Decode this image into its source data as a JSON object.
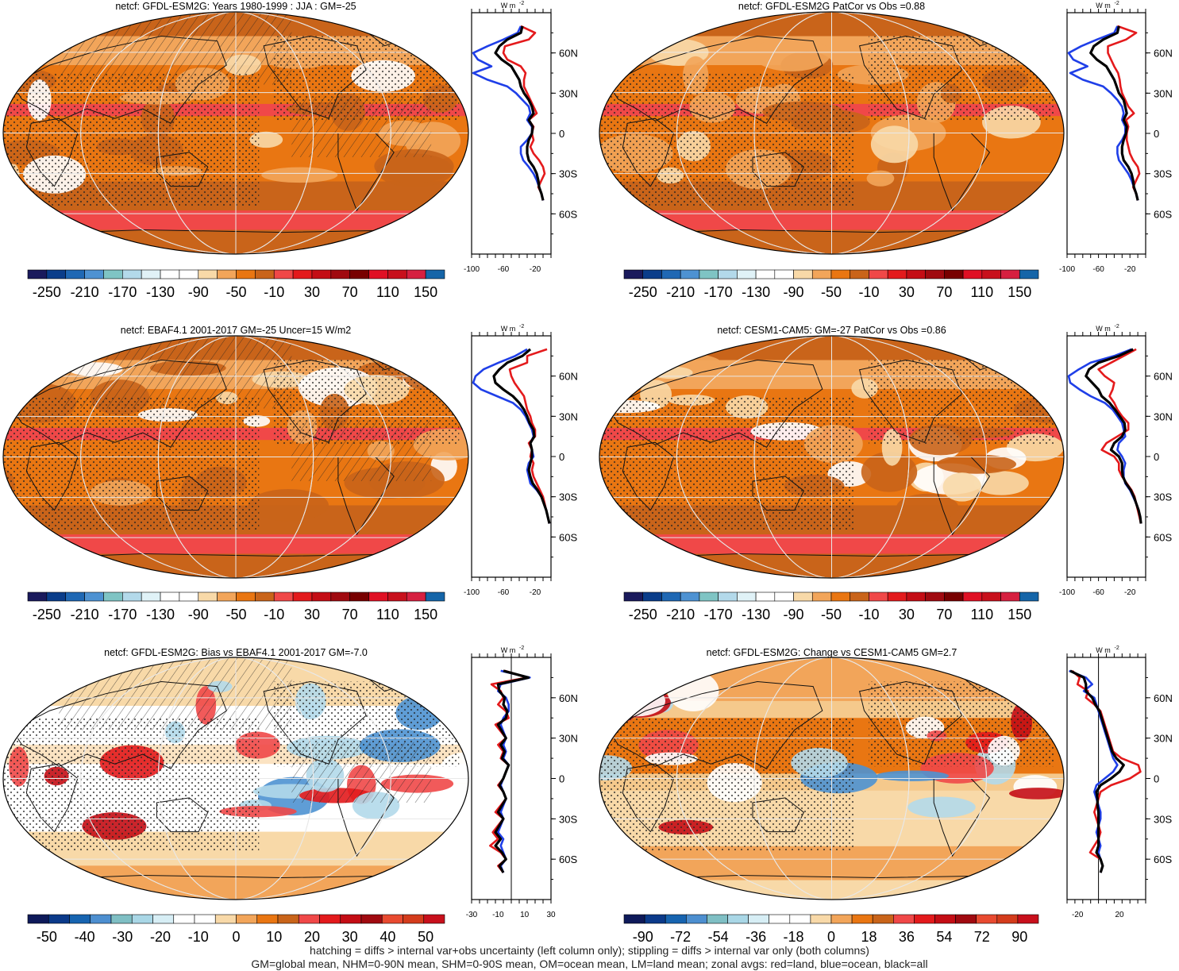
{
  "chart_data": [
    {
      "type": "heatmap",
      "title": "netcf: GFDL-ESM2G: Years 1980-1999 : JJA : GM=-25",
      "colorbar_labels": [
        "-250",
        "-210",
        "-170",
        "-130",
        "-90",
        "-50",
        "-10",
        "30",
        "70",
        "110",
        "150"
      ],
      "zonal_profile": {
        "type": "line",
        "unit": "W m",
        "unit_exponent": "-2",
        "xticks": [
          "-100",
          "-60",
          "-20"
        ],
        "yticks": [
          "60N",
          "30N",
          "0",
          "30S",
          "60S"
        ],
        "xlim": [
          -100,
          0
        ],
        "ylim": [
          -90,
          90
        ],
        "lat": [
          80,
          75,
          70,
          65,
          60,
          55,
          50,
          45,
          40,
          35,
          30,
          25,
          20,
          15,
          10,
          5,
          0,
          -5,
          -10,
          -15,
          -20,
          -25,
          -30,
          -35,
          -40,
          -45,
          -50
        ],
        "series": [
          {
            "color": "#e41a1c",
            "values": [
              -38,
              -20,
              -28,
              -58,
              -60,
              -55,
              -38,
              -32,
              -34,
              -34,
              -30,
              -26,
              -22,
              -18,
              -28,
              -22,
              -24,
              -22,
              -26,
              -22,
              -15,
              -10,
              -8,
              -12,
              -16,
              -12,
              -10
            ]
          },
          {
            "color": "#1f3fe8",
            "values": [
              -38,
              -42,
              -60,
              -80,
              -98,
              -92,
              -75,
              -98,
              -80,
              -55,
              -44,
              -36,
              -28,
              -26,
              -30,
              -24,
              -24,
              -30,
              -38,
              -38,
              -35,
              -28,
              -22,
              -18,
              -15,
              -12,
              -10
            ]
          },
          {
            "color": "#000000",
            "values": [
              -36,
              -38,
              -55,
              -65,
              -70,
              -62,
              -50,
              -45,
              -40,
              -38,
              -34,
              -28,
              -24,
              -22,
              -28,
              -23,
              -24,
              -28,
              -30,
              -30,
              -28,
              -22,
              -18,
              -16,
              -15,
              -12,
              -10
            ]
          }
        ]
      }
    },
    {
      "type": "heatmap",
      "title": "netcf: GFDL-ESM2G PatCor vs Obs =0.88",
      "colorbar_labels": [
        "-250",
        "-210",
        "-170",
        "-130",
        "-90",
        "-50",
        "-10",
        "30",
        "70",
        "110",
        "150"
      ],
      "zonal_profile": {
        "type": "line",
        "unit": "W m",
        "unit_exponent": "-2",
        "xticks": [
          "-100",
          "-60",
          "-20"
        ],
        "yticks": [
          "60N",
          "30N",
          "0",
          "30S",
          "60S"
        ],
        "xlim": [
          -100,
          0
        ],
        "ylim": [
          -90,
          90
        ],
        "lat": [
          80,
          75,
          70,
          65,
          60,
          55,
          50,
          45,
          40,
          35,
          30,
          25,
          20,
          15,
          10,
          5,
          0,
          -5,
          -10,
          -15,
          -20,
          -25,
          -30,
          -35,
          -40,
          -45,
          -50
        ],
        "series": [
          {
            "color": "#e41a1c",
            "values": [
              -36,
              -12,
              -25,
              -48,
              -48,
              -44,
              -40,
              -35,
              -33,
              -32,
              -30,
              -26,
              -22,
              -15,
              -25,
              -22,
              -24,
              -24,
              -22,
              -20,
              -16,
              -10,
              -8,
              -12,
              -16,
              -12,
              -10
            ]
          },
          {
            "color": "#1f3fe8",
            "values": [
              -36,
              -40,
              -62,
              -82,
              -98,
              -92,
              -74,
              -96,
              -80,
              -54,
              -44,
              -36,
              -30,
              -28,
              -30,
              -26,
              -26,
              -30,
              -36,
              -36,
              -34,
              -28,
              -22,
              -18,
              -15,
              -12,
              -10
            ]
          },
          {
            "color": "#000000",
            "values": [
              -34,
              -36,
              -54,
              -66,
              -70,
              -62,
              -50,
              -45,
              -40,
              -37,
              -34,
              -28,
              -26,
              -24,
              -28,
              -24,
              -25,
              -28,
              -30,
              -30,
              -28,
              -22,
              -18,
              -16,
              -15,
              -12,
              -10
            ]
          }
        ]
      }
    },
    {
      "type": "heatmap",
      "title": "netcf: EBAF4.1 2001-2017 GM=-25 Uncer=15 W/m2",
      "colorbar_labels": [
        "-250",
        "-210",
        "-170",
        "-130",
        "-90",
        "-50",
        "-10",
        "30",
        "70",
        "110",
        "150"
      ],
      "zonal_profile": {
        "type": "line",
        "unit": "W m",
        "unit_exponent": "-2",
        "xticks": [
          "-100",
          "-60",
          "-20"
        ],
        "yticks": [
          "60N",
          "30N",
          "0",
          "30S",
          "60S"
        ],
        "xlim": [
          -100,
          0
        ],
        "ylim": [
          -90,
          90
        ],
        "lat": [
          80,
          75,
          70,
          65,
          60,
          55,
          50,
          45,
          40,
          35,
          30,
          25,
          20,
          15,
          10,
          5,
          0,
          -5,
          -10,
          -15,
          -20,
          -25,
          -30,
          -35,
          -40,
          -45,
          -50
        ],
        "series": [
          {
            "color": "#e41a1c",
            "values": [
              -5,
              -30,
              -30,
              -52,
              -50,
              -46,
              -40,
              -34,
              -32,
              -30,
              -26,
              -24,
              -20,
              -20,
              -28,
              -24,
              -26,
              -22,
              -24,
              -22,
              -18,
              -14,
              -10,
              -8,
              -6,
              -4,
              -2
            ]
          },
          {
            "color": "#1f3fe8",
            "values": [
              -30,
              -45,
              -66,
              -85,
              -95,
              -98,
              -88,
              -68,
              -48,
              -38,
              -32,
              -28,
              -24,
              -22,
              -26,
              -24,
              -22,
              -28,
              -30,
              -28,
              -26,
              -18,
              -12,
              -9,
              -6,
              -4,
              -2
            ]
          },
          {
            "color": "#000000",
            "values": [
              -26,
              -36,
              -55,
              -65,
              -72,
              -70,
              -60,
              -48,
              -40,
              -34,
              -30,
              -27,
              -22,
              -21,
              -26,
              -24,
              -24,
              -26,
              -28,
              -26,
              -23,
              -17,
              -12,
              -9,
              -6,
              -4,
              -2
            ]
          }
        ]
      }
    },
    {
      "type": "heatmap",
      "title": "netcf: CESM1-CAM5: GM=-27 PatCor vs Obs =0.86",
      "colorbar_labels": [
        "-250",
        "-210",
        "-170",
        "-130",
        "-90",
        "-50",
        "-10",
        "30",
        "70",
        "110",
        "150"
      ],
      "zonal_profile": {
        "type": "line",
        "unit": "W m",
        "unit_exponent": "-2",
        "xticks": [
          "-100",
          "-60",
          "-20"
        ],
        "yticks": [
          "60N",
          "30N",
          "0",
          "30S",
          "60S"
        ],
        "xlim": [
          -100,
          0
        ],
        "ylim": [
          -90,
          90
        ],
        "lat": [
          80,
          75,
          70,
          65,
          60,
          55,
          50,
          45,
          40,
          35,
          30,
          25,
          20,
          15,
          10,
          5,
          0,
          -5,
          -10,
          -15,
          -20,
          -25,
          -30,
          -35,
          -40,
          -45,
          -50
        ],
        "series": [
          {
            "color": "#e41a1c",
            "values": [
              -12,
              -28,
              -44,
              -60,
              -52,
              -40,
              -42,
              -46,
              -40,
              -36,
              -30,
              -22,
              -22,
              -36,
              -50,
              -56,
              -40,
              -34,
              -34,
              -30,
              -24,
              -18,
              -14,
              -12,
              -10,
              -8,
              -6
            ]
          },
          {
            "color": "#1f3fe8",
            "values": [
              -18,
              -40,
              -70,
              -85,
              -98,
              -96,
              -84,
              -70,
              -52,
              -42,
              -36,
              -30,
              -28,
              -26,
              -34,
              -36,
              -30,
              -26,
              -28,
              -28,
              -26,
              -20,
              -16,
              -12,
              -9,
              -7,
              -6
            ]
          },
          {
            "color": "#000000",
            "values": [
              -16,
              -34,
              -60,
              -72,
              -76,
              -68,
              -60,
              -56,
              -46,
              -39,
              -33,
              -27,
              -26,
              -30,
              -40,
              -44,
              -34,
              -30,
              -30,
              -29,
              -25,
              -19,
              -15,
              -12,
              -9,
              -7,
              -6
            ]
          }
        ]
      }
    },
    {
      "type": "heatmap",
      "title": "netcf: GFDL-ESM2G: Bias vs EBAF4.1 2001-2017 GM=-7.0",
      "colorbar_labels": [
        "-50",
        "-40",
        "-30",
        "-20",
        "-10",
        "0",
        "10",
        "20",
        "30",
        "40",
        "50"
      ],
      "zonal_profile": {
        "type": "line",
        "unit": "W m",
        "unit_exponent": "-2",
        "xticks": [
          "-30",
          "-10",
          "10",
          "30"
        ],
        "yticks": [
          "60N",
          "30N",
          "0",
          "30S",
          "60S"
        ],
        "xlim": [
          -30,
          30
        ],
        "ylim": [
          -90,
          90
        ],
        "lat": [
          80,
          75,
          70,
          65,
          60,
          55,
          50,
          45,
          40,
          35,
          30,
          25,
          20,
          15,
          10,
          5,
          0,
          -5,
          -10,
          -15,
          -20,
          -25,
          -30,
          -35,
          -40,
          -45,
          -50,
          -55,
          -60,
          -65,
          -70
        ],
        "series": [
          {
            "color": "#e41a1c",
            "values": [
              -5,
              12,
              -15,
              -8,
              -6,
              -10,
              -4,
              -2,
              -12,
              -8,
              -4,
              -10,
              -6,
              -8,
              -2,
              -4,
              -6,
              -10,
              -6,
              -4,
              -8,
              -12,
              -6,
              -10,
              -14,
              -10,
              -16,
              -8,
              -4,
              -10,
              -6
            ]
          },
          {
            "color": "#1f3fe8",
            "values": [
              -8,
              14,
              -8,
              -10,
              -4,
              -2,
              -2,
              -6,
              -8,
              -6,
              -4,
              -6,
              -4,
              -6,
              -2,
              -4,
              -6,
              -8,
              -6,
              -4,
              -6,
              -8,
              -6,
              -8,
              -10,
              -6,
              -8,
              -6,
              -4,
              -8,
              -6
            ]
          },
          {
            "color": "#000000",
            "values": [
              -6,
              13,
              -10,
              -9,
              -5,
              -6,
              -3,
              -4,
              -10,
              -7,
              -4,
              -8,
              -5,
              -7,
              -2,
              -4,
              -6,
              -9,
              -6,
              -4,
              -7,
              -10,
              -6,
              -9,
              -12,
              -8,
              -12,
              -7,
              -4,
              -9,
              -6
            ]
          }
        ]
      }
    },
    {
      "type": "heatmap",
      "title": "netcf: GFDL-ESM2G: Change vs CESM1-CAM5 GM=2.7",
      "colorbar_labels": [
        "-90",
        "-72",
        "-54",
        "-36",
        "-18",
        "0",
        "18",
        "36",
        "54",
        "72",
        "90"
      ],
      "zonal_profile": {
        "type": "line",
        "unit": "W m",
        "unit_exponent": "-2",
        "xticks": [
          "-20",
          "20"
        ],
        "yticks": [
          "60N",
          "30N",
          "0",
          "30S",
          "60S"
        ],
        "xlim": [
          -30,
          45
        ],
        "ylim": [
          -90,
          90
        ],
        "lat": [
          80,
          75,
          70,
          65,
          60,
          55,
          50,
          45,
          40,
          35,
          30,
          25,
          20,
          15,
          10,
          5,
          0,
          -5,
          -10,
          -15,
          -20,
          -25,
          -30,
          -35,
          -40,
          -45,
          -50,
          -55,
          -60,
          -65,
          -70
        ],
        "series": [
          {
            "color": "#e41a1c",
            "values": [
              -25,
              -18,
              -20,
              -10,
              -12,
              -4,
              2,
              4,
              6,
              8,
              10,
              12,
              14,
              22,
              38,
              40,
              30,
              12,
              2,
              0,
              -2,
              -4,
              -2,
              0,
              2,
              0,
              -4,
              -8,
              2,
              4,
              2
            ]
          },
          {
            "color": "#1f3fe8",
            "values": [
              -28,
              -12,
              -6,
              -14,
              -4,
              -2,
              0,
              2,
              4,
              6,
              8,
              10,
              12,
              14,
              18,
              14,
              6,
              -2,
              -4,
              -2,
              0,
              2,
              2,
              0,
              -2,
              0,
              2,
              0,
              2,
              4,
              2
            ]
          },
          {
            "color": "#000000",
            "values": [
              -27,
              -14,
              -12,
              -12,
              -6,
              -3,
              1,
              3,
              5,
              7,
              9,
              11,
              13,
              17,
              24,
              20,
              12,
              2,
              -2,
              -1,
              -1,
              0,
              0,
              0,
              0,
              0,
              0,
              -2,
              2,
              4,
              2
            ]
          }
        ]
      }
    }
  ],
  "footer": {
    "line1": "hatching = diffs > internal var+obs uncertainty (left column only); stippling = diffs > internal var only (both columns)",
    "line2": "GM=global mean, NHM=0-90N mean, SHM=0-90S mean, OM=ocean mean, LM=land mean; zonal avgs: red=land, blue=ocean, black=all"
  },
  "colors": {
    "abs_colorbar": [
      "#1a1a5c",
      "#0a3d8a",
      "#1f68b4",
      "#4e92d2",
      "#7fc4c4",
      "#b3d9ea",
      "#e0f2f7",
      "#ffffff",
      "#ffffff",
      "#f8d9a8",
      "#f2a55a",
      "#e97612",
      "#c9641a",
      "#f04848",
      "#e31a1c",
      "#c40d15",
      "#a00a10",
      "#780000",
      "#e01024",
      "#c8101c",
      "#d62040",
      "#1565a8"
    ],
    "diff_colorbar": [
      "#0e1a5a",
      "#0b3a8a",
      "#1764b0",
      "#4d8fd0",
      "#7fbfc4",
      "#a9d7e6",
      "#d7eef5",
      "#ffffff",
      "#ffffff",
      "#f8d9a8",
      "#f2a55a",
      "#e97612",
      "#c9641a",
      "#f04848",
      "#e31a1c",
      "#c40d15",
      "#a00a10",
      "#e84a30",
      "#d43c1c",
      "#c8101c"
    ]
  }
}
